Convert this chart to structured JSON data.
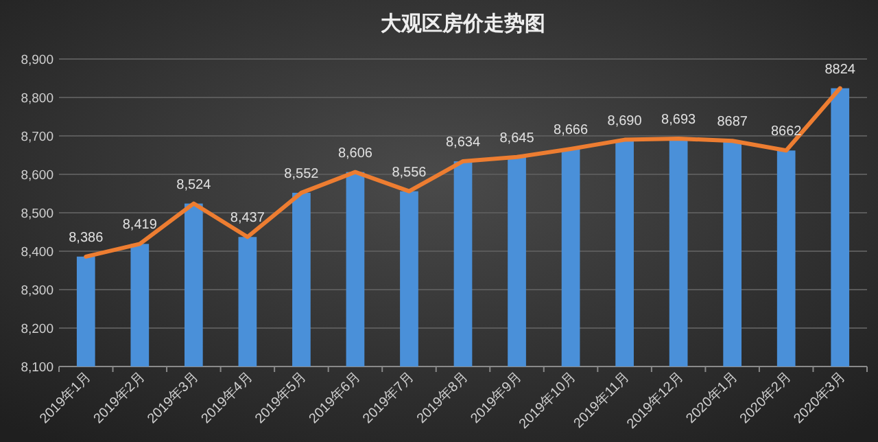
{
  "chart_data": {
    "type": "bar",
    "title": "大观区房价走势图",
    "categories": [
      "2019年1月",
      "2019年2月",
      "2019年3月",
      "2019年4月",
      "2019年5月",
      "2019年6月",
      "2019年7月",
      "2019年8月",
      "2019年9月",
      "2019年10月",
      "2019年11月",
      "2019年12月",
      "2020年1月",
      "2020年2月",
      "2020年3月"
    ],
    "series": [
      {
        "color": "#4a90d9",
        "values": [
          8386,
          8419,
          8524,
          8437,
          8552,
          8606,
          8556,
          8634,
          8645,
          8666,
          8690,
          8693,
          8687,
          8662,
          8824
        ]
      },
      {
        "type": "line",
        "color": "#ed7d31",
        "values": [
          8386,
          8419,
          8524,
          8437,
          8552,
          8606,
          8556,
          8634,
          8645,
          8666,
          8690,
          8693,
          8687,
          8662,
          8824
        ]
      }
    ],
    "value_labels": [
      "8,386",
      "8,419",
      "8,524",
      "8,437",
      "8,552",
      "8,606",
      "8,556",
      "8,634",
      "8,645",
      "8,666",
      "8,690",
      "8,693",
      "8687",
      "8662",
      "8824"
    ],
    "ylim": [
      8100,
      8900
    ],
    "yticks": [
      {
        "value": 8100,
        "label": "8,100"
      },
      {
        "value": 8200,
        "label": "8,200"
      },
      {
        "value": 8300,
        "label": "8,300"
      },
      {
        "value": 8400,
        "label": "8,400"
      },
      {
        "value": 8500,
        "label": "8,500"
      },
      {
        "value": 8600,
        "label": "8,600"
      },
      {
        "value": 8700,
        "label": "8,700"
      },
      {
        "value": 8800,
        "label": "8,800"
      },
      {
        "value": 8900,
        "label": "8,900"
      }
    ],
    "grid": "y"
  }
}
